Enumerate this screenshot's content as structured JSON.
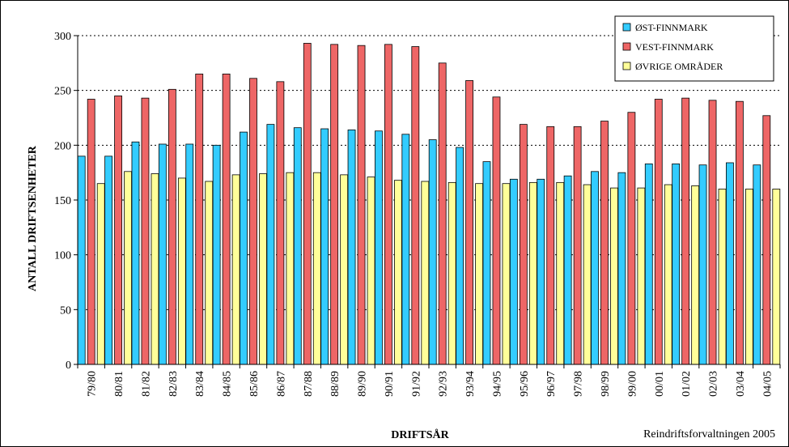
{
  "chart_data": {
    "type": "bar",
    "title": "",
    "xlabel": "DRIFTSÅR",
    "ylabel": "ANTALL DRIFTSENHETER",
    "source": "Reindriftsforvaltningen 2005",
    "ylim": [
      0,
      300
    ],
    "yticks": [
      0,
      50,
      100,
      150,
      200,
      250,
      300
    ],
    "grid": "horizontal dotted",
    "legend_position": "top-right",
    "categories": [
      "79/80",
      "80/81",
      "81/82",
      "82/83",
      "83/84",
      "84/85",
      "85/86",
      "86/87",
      "87/88",
      "88/89",
      "89/90",
      "90/91",
      "91/92",
      "92/93",
      "93/94",
      "94/95",
      "95/96",
      "96/97",
      "97/98",
      "98/99",
      "99/00",
      "00/01",
      "01/02",
      "02/03",
      "03/04",
      "04/05"
    ],
    "series": [
      {
        "name": "ØST-FINNMARK",
        "color": "#33CCFF",
        "values": [
          190,
          190,
          203,
          201,
          201,
          200,
          212,
          219,
          216,
          215,
          214,
          213,
          210,
          205,
          198,
          185,
          169,
          169,
          172,
          176,
          175,
          183,
          183,
          182,
          184,
          182
        ]
      },
      {
        "name": "VEST-FINNMARK",
        "color": "#EE6666",
        "values": [
          242,
          245,
          243,
          251,
          265,
          265,
          261,
          258,
          293,
          292,
          291,
          292,
          290,
          275,
          259,
          244,
          219,
          217,
          217,
          222,
          230,
          242,
          243,
          241,
          240,
          227
        ]
      },
      {
        "name": "ØVRIGE OMRÅDER",
        "color": "#FFFF99",
        "values": [
          165,
          176,
          174,
          170,
          167,
          173,
          174,
          175,
          175,
          173,
          171,
          168,
          167,
          166,
          165,
          165,
          166,
          166,
          164,
          161,
          161,
          164,
          163,
          160,
          160,
          160
        ]
      }
    ]
  }
}
